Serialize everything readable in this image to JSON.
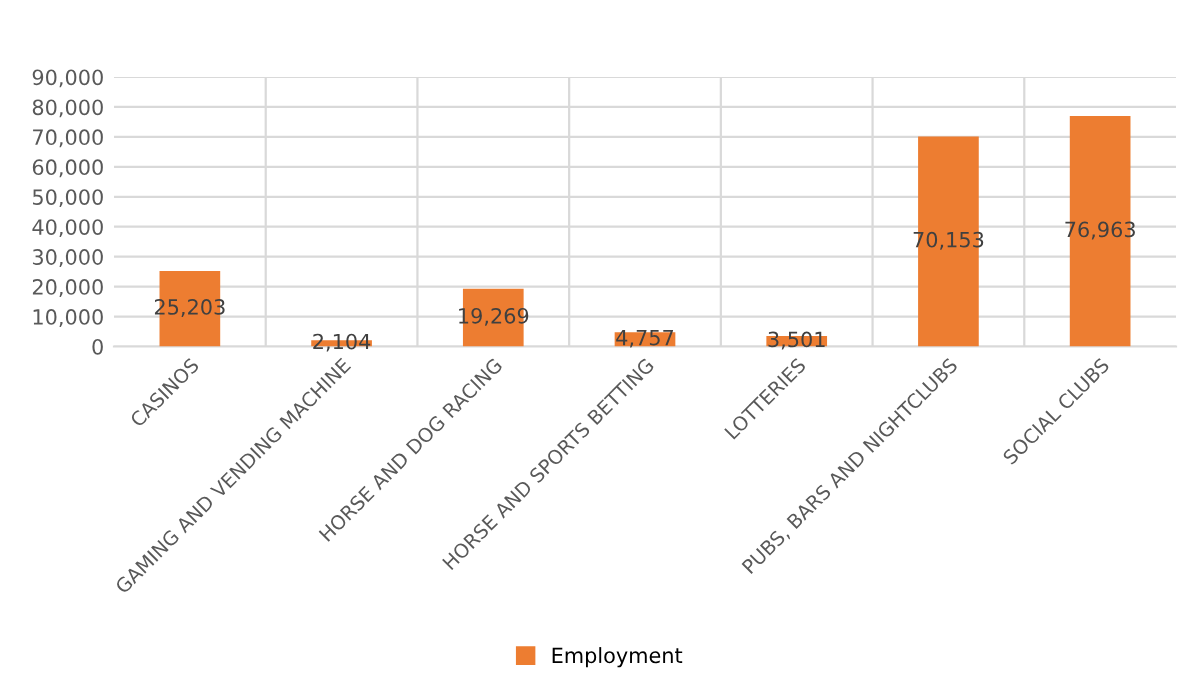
{
  "chart_data": {
    "type": "bar",
    "categories": [
      "CASINOS",
      "GAMING AND VENDING MACHINE",
      "HORSE AND DOG RACING",
      "HORSE AND SPORTS BETTING",
      "LOTTERIES",
      "PUBS, BARS AND NIGHTCLUBS",
      "SOCIAL CLUBS"
    ],
    "series": [
      {
        "name": "Employment",
        "color": "#ed7d31",
        "values": [
          25203,
          2104,
          19269,
          4757,
          3501,
          70153,
          76963
        ]
      }
    ],
    "ylim": [
      0,
      90000
    ],
    "yticks": [
      {
        "value": 0,
        "label": "0"
      },
      {
        "value": 10000,
        "label": "10,000"
      },
      {
        "value": 20000,
        "label": "20,000"
      },
      {
        "value": 30000,
        "label": "30,000"
      },
      {
        "value": 40000,
        "label": "40,000"
      },
      {
        "value": 50000,
        "label": "50,000"
      },
      {
        "value": 60000,
        "label": "60,000"
      },
      {
        "value": 70000,
        "label": "70,000"
      },
      {
        "value": 80000,
        "label": "80,000"
      },
      {
        "value": 90000,
        "label": "90,000"
      }
    ],
    "value_labels": [
      "25,203",
      "2,104",
      "19,269",
      "4,757",
      "3,501",
      "70,153",
      "76,963"
    ],
    "grid": true,
    "legend": "bottom"
  }
}
